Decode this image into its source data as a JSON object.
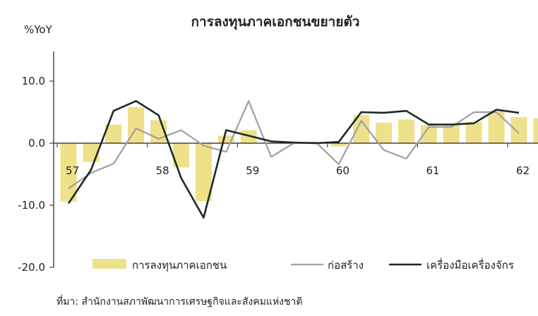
{
  "chart_data": {
    "type": "bar",
    "title": "การลงทุนภาคเอกชนขยายตัว",
    "ylabel": "%YoY",
    "ylim": [
      -20,
      15
    ],
    "yticks": [
      10.0,
      0.0,
      -10.0,
      -20.0
    ],
    "ytick_labels": [
      "10.0",
      "0.0",
      "-10.0",
      "-20.0"
    ],
    "xtick_labels": [
      "57",
      "58",
      "59",
      "60",
      "61",
      "62"
    ],
    "periods": [
      "57Q1",
      "57Q2",
      "57Q3",
      "57Q4",
      "58Q1",
      "58Q2",
      "58Q3",
      "58Q4",
      "59Q1",
      "59Q2",
      "59Q3",
      "59Q4",
      "60Q1",
      "60Q2",
      "60Q3",
      "60Q4",
      "61Q1",
      "61Q2",
      "61Q3",
      "61Q4",
      "62Q1",
      "62Q2"
    ],
    "series": [
      {
        "name": "การลงทุนภาคเอกชน",
        "kind": "bar",
        "color": "#efe08a",
        "values": [
          -9.4,
          -3.0,
          3.0,
          5.8,
          3.7,
          -3.9,
          -9.3,
          1.2,
          2.1,
          0.1,
          0.2,
          0.1,
          -0.5,
          4.5,
          3.3,
          3.8,
          2.9,
          3.0,
          3.4,
          5.2,
          4.2,
          4.0
        ]
      },
      {
        "name": "ก่อสร้าง",
        "kind": "line",
        "color": "#a0a0a0",
        "values": [
          -7.3,
          -4.8,
          -3.3,
          2.4,
          0.7,
          2.1,
          -0.4,
          -1.4,
          6.8,
          -2.2,
          0.0,
          0.1,
          -3.4,
          3.6,
          -1.1,
          -2.5,
          2.6,
          2.6,
          5.0,
          5.0,
          1.6
        ]
      },
      {
        "name": "เครื่องมือเครื่องจักร",
        "kind": "line",
        "color": "#1c2b22",
        "values": [
          -9.7,
          -4.3,
          5.2,
          6.8,
          4.5,
          -5.6,
          -12.0,
          2.1,
          1.2,
          0.3,
          0.1,
          0.0,
          0.2,
          5.0,
          4.9,
          5.2,
          3.0,
          3.0,
          3.2,
          5.4,
          4.9
        ]
      }
    ],
    "source_note": "ที่มา: สำนักงานสภาพัฒนาการเศรษฐกิจและสังคมแห่งชาติ",
    "legend_position": "bottom",
    "grid": false
  }
}
